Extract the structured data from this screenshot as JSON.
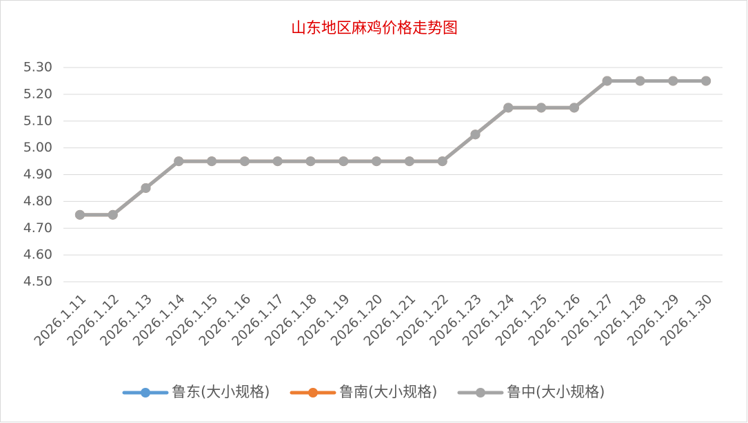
{
  "chart_data": {
    "type": "line",
    "title": "山东地区麻鸡价格走势图",
    "categories": [
      "2026.1.11",
      "2026.1.12",
      "2026.1.13",
      "2026.1.14",
      "2026.1.15",
      "2026.1.16",
      "2026.1.17",
      "2026.1.18",
      "2026.1.19",
      "2026.1.20",
      "2026.1.21",
      "2026.1.22",
      "2026.1.23",
      "2026.1.24",
      "2026.1.25",
      "2026.1.26",
      "2026.1.27",
      "2026.1.28",
      "2026.1.29",
      "2026.1.30"
    ],
    "series": [
      {
        "name": "鲁东(大小规格)",
        "color": "#5b9bd5",
        "values": [
          4.75,
          4.75,
          4.85,
          4.95,
          4.95,
          4.95,
          4.95,
          4.95,
          4.95,
          4.95,
          4.95,
          4.95,
          5.05,
          5.15,
          5.15,
          5.15,
          5.25,
          5.25,
          5.25,
          5.25
        ]
      },
      {
        "name": "鲁南(大小规格)",
        "color": "#ed7d31",
        "values": [
          4.75,
          4.75,
          4.85,
          4.95,
          4.95,
          4.95,
          4.95,
          4.95,
          4.95,
          4.95,
          4.95,
          4.95,
          5.05,
          5.15,
          5.15,
          5.15,
          5.25,
          5.25,
          5.25,
          5.25
        ]
      },
      {
        "name": "鲁中(大小规格)",
        "color": "#a5a5a5",
        "values": [
          4.75,
          4.75,
          4.85,
          4.95,
          4.95,
          4.95,
          4.95,
          4.95,
          4.95,
          4.95,
          4.95,
          4.95,
          5.05,
          5.15,
          5.15,
          5.15,
          5.25,
          5.25,
          5.25,
          5.25
        ]
      }
    ],
    "ylim": [
      4.5,
      5.3
    ],
    "yticks": [
      {
        "value": 4.5,
        "label": "4.50"
      },
      {
        "value": 4.6,
        "label": "4.60"
      },
      {
        "value": 4.7,
        "label": "4.70"
      },
      {
        "value": 4.8,
        "label": "4.80"
      },
      {
        "value": 4.9,
        "label": "4.90"
      },
      {
        "value": 5.0,
        "label": "5.00"
      },
      {
        "value": 5.1,
        "label": "5.10"
      },
      {
        "value": 5.2,
        "label": "5.20"
      },
      {
        "value": 5.3,
        "label": "5.30"
      }
    ],
    "grid": true,
    "legend": "bottom"
  }
}
